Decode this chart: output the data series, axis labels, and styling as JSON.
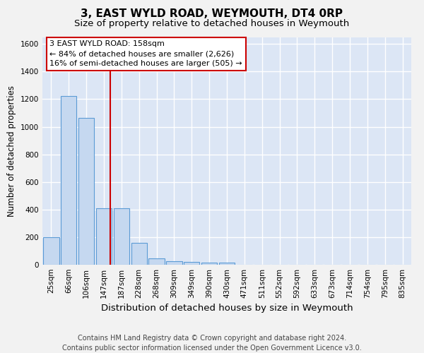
{
  "title": "3, EAST WYLD ROAD, WEYMOUTH, DT4 0RP",
  "subtitle": "Size of property relative to detached houses in Weymouth",
  "xlabel": "Distribution of detached houses by size in Weymouth",
  "ylabel": "Number of detached properties",
  "bar_labels": [
    "25sqm",
    "66sqm",
    "106sqm",
    "147sqm",
    "187sqm",
    "228sqm",
    "268sqm",
    "309sqm",
    "349sqm",
    "390sqm",
    "430sqm",
    "471sqm",
    "511sqm",
    "552sqm",
    "592sqm",
    "633sqm",
    "673sqm",
    "714sqm",
    "754sqm",
    "795sqm",
    "835sqm"
  ],
  "bar_values": [
    200,
    1225,
    1065,
    410,
    410,
    160,
    47,
    27,
    22,
    15,
    15,
    0,
    0,
    0,
    0,
    0,
    0,
    0,
    0,
    0,
    0
  ],
  "bar_color": "#c5d8f0",
  "bar_edge_color": "#5b9bd5",
  "ylim": [
    0,
    1650
  ],
  "yticks": [
    0,
    200,
    400,
    600,
    800,
    1000,
    1200,
    1400,
    1600
  ],
  "property_bin_index": 3.38,
  "red_line_color": "#cc0000",
  "annotation_text_line1": "3 EAST WYLD ROAD: 158sqm",
  "annotation_text_line2": "← 84% of detached houses are smaller (2,626)",
  "annotation_text_line3": "16% of semi-detached houses are larger (505) →",
  "annotation_box_color": "#cc0000",
  "annotation_fill": "#ffffff",
  "background_color": "#dce6f5",
  "plot_bg_color": "#dce6f5",
  "fig_bg_color": "#f2f2f2",
  "grid_color": "#ffffff",
  "footer_line1": "Contains HM Land Registry data © Crown copyright and database right 2024.",
  "footer_line2": "Contains public sector information licensed under the Open Government Licence v3.0.",
  "title_fontsize": 11,
  "subtitle_fontsize": 9.5,
  "xlabel_fontsize": 9.5,
  "ylabel_fontsize": 8.5,
  "tick_fontsize": 7.5,
  "annotation_fontsize": 8,
  "footer_fontsize": 7
}
